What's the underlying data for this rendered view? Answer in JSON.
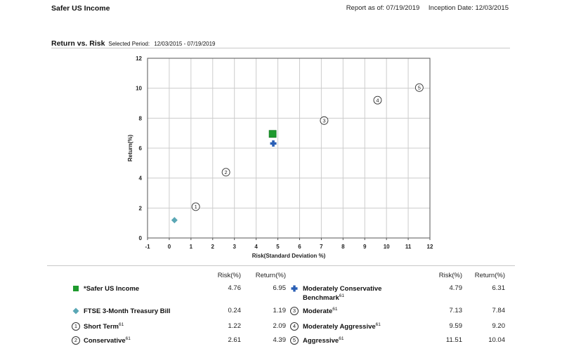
{
  "report": {
    "title": "Safer US Income",
    "report_as_of": "Report as of: 07/19/2019",
    "inception_date": "Inception Date: 12/03/2015"
  },
  "section": {
    "title": "Return vs. Risk",
    "selected_period_label": "Selected Period:",
    "selected_period_value": "12/03/2015 - 07/19/2019"
  },
  "colors": {
    "fund": "#1e9a2e",
    "benchmark": "#2a5fb5",
    "tbill": "#5aa7b5",
    "grid": "#cccccc"
  },
  "chart_data": {
    "type": "scatter",
    "xlabel": "Risk(Standard Deviation %)",
    "ylabel": "Return(%)",
    "xlim": [
      -1,
      12
    ],
    "ylim": [
      0,
      12
    ],
    "xticks": [
      -1,
      0,
      1,
      2,
      3,
      4,
      5,
      6,
      7,
      8,
      9,
      10,
      11,
      12
    ],
    "yticks": [
      0,
      2,
      4,
      6,
      8,
      10,
      12
    ],
    "grid": true,
    "points": [
      {
        "name": "*Safer US Income",
        "marker": "square",
        "color": "#1e9a2e",
        "x": 4.76,
        "y": 6.95
      },
      {
        "name": "Moderately Conservative Benchmark",
        "marker": "cross",
        "color": "#2a5fb5",
        "x": 4.79,
        "y": 6.31
      },
      {
        "name": "FTSE 3-Month Treasury Bill",
        "marker": "diamond",
        "color": "#5aa7b5",
        "x": 0.24,
        "y": 1.19
      },
      {
        "name": "Short Term",
        "marker": "circle-1",
        "label": "1",
        "x": 1.22,
        "y": 2.09
      },
      {
        "name": "Conservative",
        "marker": "circle-2",
        "label": "2",
        "x": 2.61,
        "y": 4.39
      },
      {
        "name": "Moderate",
        "marker": "circle-3",
        "label": "3",
        "x": 7.13,
        "y": 7.84
      },
      {
        "name": "Moderately Aggressive",
        "marker": "circle-4",
        "label": "4",
        "x": 9.59,
        "y": 9.2
      },
      {
        "name": "Aggressive",
        "marker": "circle-5",
        "label": "5",
        "x": 11.51,
        "y": 10.04
      }
    ]
  },
  "legend": {
    "col_risk": "Risk(%)",
    "col_return": "Return(%)",
    "left": [
      {
        "label": "*Safer US Income",
        "sup": "",
        "risk": "4.76",
        "ret": "6.95",
        "marker": "square"
      },
      {
        "label": "FTSE 3-Month Treasury Bill",
        "sup": "",
        "risk": "0.24",
        "ret": "1.19",
        "marker": "diamond"
      },
      {
        "label": "Short Term",
        "sup": "61",
        "risk": "1.22",
        "ret": "2.09",
        "marker": "circle",
        "num": "1"
      },
      {
        "label": "Conservative",
        "sup": "61",
        "risk": "2.61",
        "ret": "4.39",
        "marker": "circle",
        "num": "2"
      }
    ],
    "right": [
      {
        "label": "Moderately Conservative",
        "label2": "Benchmark",
        "sup": "61",
        "risk": "4.79",
        "ret": "6.31",
        "marker": "cross"
      },
      {
        "label": "Moderate",
        "sup": "61",
        "risk": "7.13",
        "ret": "7.84",
        "marker": "circle",
        "num": "3"
      },
      {
        "label": "Moderately Aggressive",
        "sup": "61",
        "risk": "9.59",
        "ret": "9.20",
        "marker": "circle",
        "num": "4"
      },
      {
        "label": "Aggressive",
        "sup": "61",
        "risk": "11.51",
        "ret": "10.04",
        "marker": "circle",
        "num": "5"
      }
    ]
  }
}
